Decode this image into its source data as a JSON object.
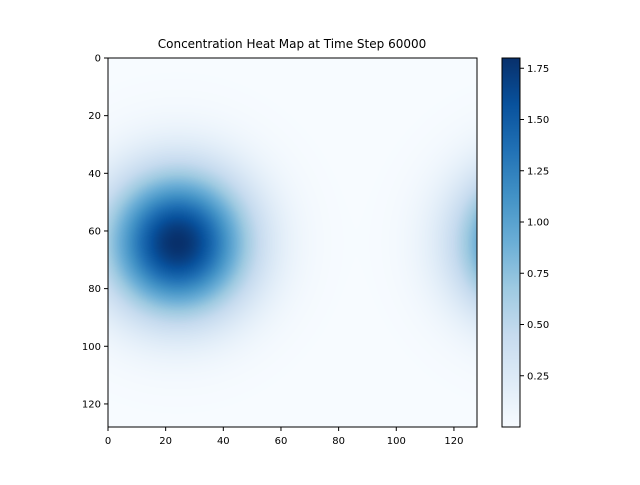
{
  "chart_data": {
    "type": "heatmap",
    "title": "Concentration Heat Map at Time Step 60000",
    "xlabel": "",
    "ylabel": "",
    "grid_size": [
      128,
      128
    ],
    "xlim": [
      0,
      128
    ],
    "ylim": [
      128,
      0
    ],
    "x_ticks": [
      0,
      20,
      40,
      60,
      80,
      100,
      120
    ],
    "y_ticks": [
      0,
      20,
      40,
      60,
      80,
      100,
      120
    ],
    "colormap": "Blues",
    "colorbar": {
      "range": [
        0.0,
        1.8
      ],
      "ticks": [
        "0.25",
        "0.50",
        "0.75",
        "1.00",
        "1.25",
        "1.50",
        "1.75"
      ]
    },
    "blobs": [
      {
        "center_x": 24,
        "center_y": 64,
        "peak": 1.8,
        "spread": 17
      },
      {
        "center_x": 148,
        "center_y": 64,
        "peak": 1.8,
        "spread": 17
      }
    ],
    "grid": false
  }
}
